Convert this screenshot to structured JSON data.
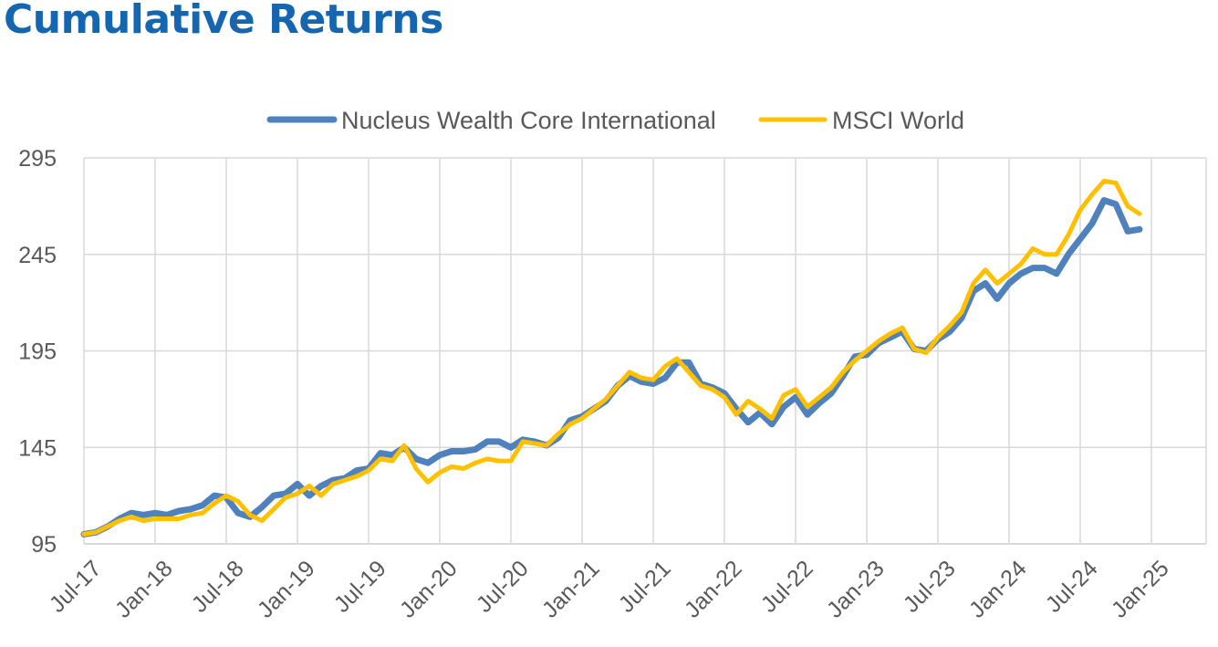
{
  "title": "Cumulative Returns",
  "chart_data": {
    "type": "line",
    "title": "Cumulative Returns",
    "xlabel": "",
    "ylabel": "",
    "ylim": [
      95,
      295
    ],
    "yticks": [
      "95",
      "145",
      "195",
      "245",
      "295"
    ],
    "xticks": [
      "Jul-17",
      "Jan-18",
      "Jul-18",
      "Jan-19",
      "Jul-19",
      "Jan-20",
      "Jul-20",
      "Jan-21",
      "Jul-21",
      "Jan-22",
      "Jul-22",
      "Jan-23",
      "Jul-23",
      "Jan-24",
      "Jul-24",
      "Jan-25"
    ],
    "x_start": "Jul-17",
    "frequency": "monthly",
    "grid": "vertical and horizontal",
    "legend": "top",
    "series": [
      {
        "name": "Nucleus Wealth Core International",
        "color": "#4f81bd",
        "values": [
          100,
          101,
          104,
          108,
          111,
          110,
          111,
          110,
          112,
          113,
          115,
          120,
          119,
          111,
          109,
          114,
          120,
          121,
          126,
          120,
          125,
          128,
          129,
          133,
          134,
          142,
          141,
          145,
          139,
          137,
          141,
          143,
          143,
          144,
          148,
          148,
          145,
          149,
          148,
          146,
          150,
          159,
          161,
          165,
          169,
          177,
          182,
          179,
          178,
          181,
          189,
          189,
          178,
          176,
          173,
          165,
          158,
          163,
          157,
          166,
          171,
          162,
          168,
          173,
          182,
          192,
          193,
          199,
          202,
          205,
          196,
          195,
          201,
          205,
          212,
          226,
          230,
          222,
          230,
          235,
          238,
          238,
          235,
          245,
          253,
          261,
          273,
          271,
          257,
          258
        ]
      },
      {
        "name": "MSCI World",
        "color": "#ffc000",
        "values": [
          100,
          101,
          104,
          107,
          109,
          107,
          108,
          108,
          108,
          110,
          111,
          116,
          120,
          117,
          110,
          107,
          113,
          119,
          121,
          125,
          120,
          126,
          128,
          130,
          133,
          139,
          138,
          146,
          134,
          127,
          132,
          135,
          134,
          137,
          139,
          138,
          138,
          148,
          147,
          146,
          152,
          157,
          160,
          165,
          170,
          177,
          184,
          181,
          180,
          187,
          191,
          184,
          177,
          175,
          171,
          162,
          169,
          165,
          160,
          172,
          175,
          166,
          171,
          176,
          184,
          190,
          195,
          200,
          204,
          207,
          196,
          194,
          202,
          208,
          215,
          230,
          237,
          230,
          235,
          240,
          248,
          245,
          245,
          255,
          268,
          276,
          283,
          282,
          270,
          266
        ]
      }
    ]
  }
}
